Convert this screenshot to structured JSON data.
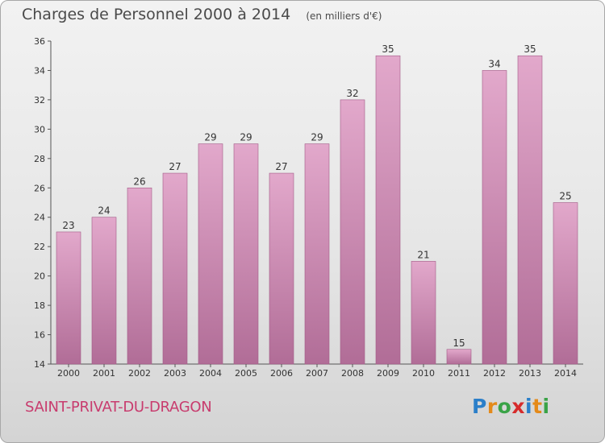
{
  "title": "Charges de Personnel 2000 à 2014",
  "subtitle": "(en milliers d'€)",
  "commune": "SAINT-PRIVAT-DU-DRAGON",
  "logo": {
    "text": "Proxiti",
    "letter_colors": [
      "#2b7fc9",
      "#e48a1a",
      "#3aa347",
      "#d62b2b",
      "#2b7fc9",
      "#e48a1a",
      "#3aa347"
    ]
  },
  "colors": {
    "bar_top": "#e2a8cb",
    "bar_bottom": "#b16d97",
    "bar_stroke": "#a25a86",
    "axis": "#555555",
    "text": "#333333",
    "commune": "#c83c6e"
  },
  "chart_data": {
    "type": "bar",
    "categories": [
      "2000",
      "2001",
      "2002",
      "2003",
      "2004",
      "2005",
      "2006",
      "2007",
      "2008",
      "2009",
      "2010",
      "2011",
      "2012",
      "2013",
      "2014"
    ],
    "values": [
      23,
      24,
      26,
      27,
      29,
      29,
      27,
      29,
      32,
      35,
      21,
      15,
      34,
      35,
      25
    ],
    "data_labels": [
      "23",
      "24",
      "26",
      "27",
      "29",
      "29",
      "27",
      "29",
      "32",
      "35",
      "21",
      "15",
      "34",
      "35",
      "25"
    ],
    "ylim": [
      14,
      36
    ],
    "yticks": [
      "14",
      "16",
      "18",
      "20",
      "22",
      "24",
      "26",
      "28",
      "30",
      "32",
      "34",
      "36"
    ],
    "title": "Charges de Personnel 2000 à 2014",
    "xlabel": "",
    "ylabel": "",
    "grid": false
  }
}
